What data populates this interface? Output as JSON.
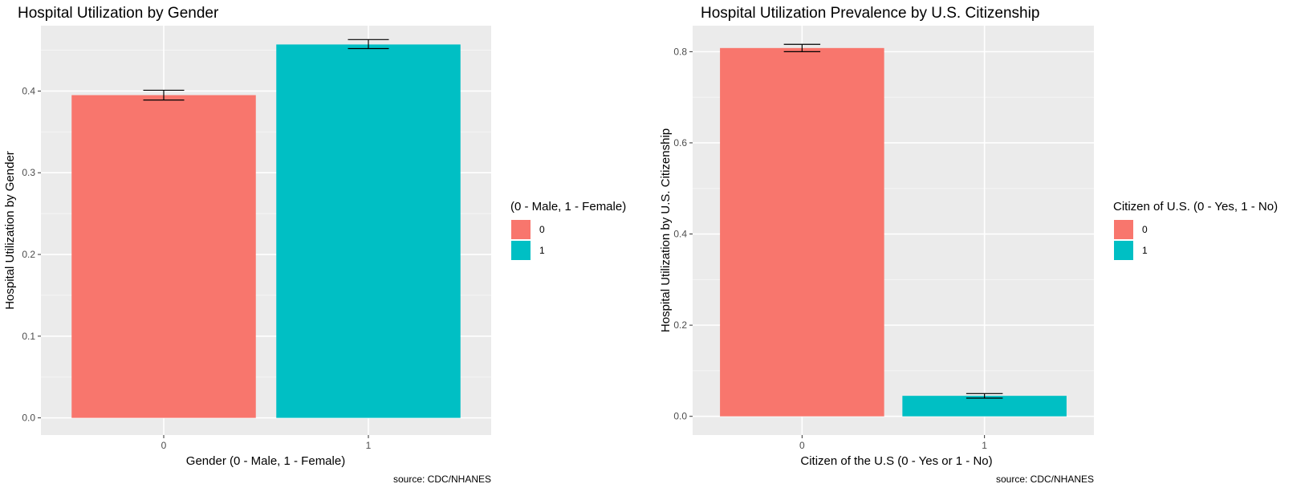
{
  "chart_data": [
    {
      "type": "bar",
      "title": "Hospital Utilization by Gender",
      "xlabel": "Gender (0 - Male, 1 - Female)",
      "ylabel": "Hospital Utilization by Gender",
      "categories": [
        "0",
        "1"
      ],
      "values": [
        0.395,
        0.457
      ],
      "error_low": [
        0.389,
        0.452
      ],
      "error_high": [
        0.401,
        0.463
      ],
      "ylim": [
        -0.021,
        0.48
      ],
      "yticks": [
        0.0,
        0.1,
        0.2,
        0.3,
        0.4
      ],
      "ytick_labels": [
        "0.0",
        "0.1",
        "0.2",
        "0.3",
        "0.4"
      ],
      "legend": {
        "title": "(0 - Male, 1 - Female)",
        "entries": [
          "0",
          "1"
        ],
        "position": "right"
      },
      "colors": [
        "#F8766D",
        "#00BFC4"
      ],
      "caption": "source: CDC/NHANES",
      "grid": true
    },
    {
      "type": "bar",
      "title": "Hospital Utilization Prevalence by U.S. Citizenship",
      "xlabel": "Citizen of the U.S (0 - Yes or 1 - No)",
      "ylabel": "Hospital Utilization by U.S. Citizenship",
      "categories": [
        "0",
        "1"
      ],
      "values": [
        0.808,
        0.045
      ],
      "error_low": [
        0.8,
        0.04
      ],
      "error_high": [
        0.816,
        0.05
      ],
      "ylim": [
        -0.041,
        0.857
      ],
      "yticks": [
        0.0,
        0.2,
        0.4,
        0.6,
        0.8
      ],
      "ytick_labels": [
        "0.0",
        "0.2",
        "0.4",
        "0.6",
        "0.8"
      ],
      "legend": {
        "title": "Citizen of U.S. (0 - Yes, 1 - No)",
        "entries": [
          "0",
          "1"
        ],
        "position": "right"
      },
      "colors": [
        "#F8766D",
        "#00BFC4"
      ],
      "caption": "source: CDC/NHANES",
      "grid": true
    }
  ]
}
